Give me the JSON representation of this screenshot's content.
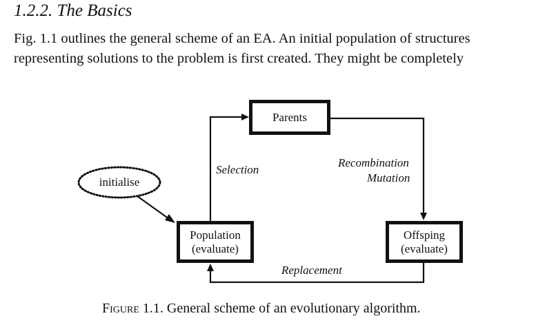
{
  "section": {
    "heading": "1.2.2. The Basics"
  },
  "body_text": {
    "line1": "Fig. 1.1 outlines the general scheme of an EA. An initial population of structures",
    "line2": "representing solutions to the problem is first created. They might be completely"
  },
  "figure": {
    "nodes": {
      "initialise": "initialise",
      "parents": "Parents",
      "population_line1": "Population",
      "population_line2": "(evaluate)",
      "offspring_line1": "Offsping",
      "offspring_line2": "(evaluate)"
    },
    "edges": {
      "selection": "Selection",
      "recombination": "Recombination",
      "mutation": "Mutation",
      "replacement": "Replacement"
    },
    "caption_prefix": "Figure",
    "caption_text": "1.1. General scheme of an evolutionary algorithm."
  }
}
